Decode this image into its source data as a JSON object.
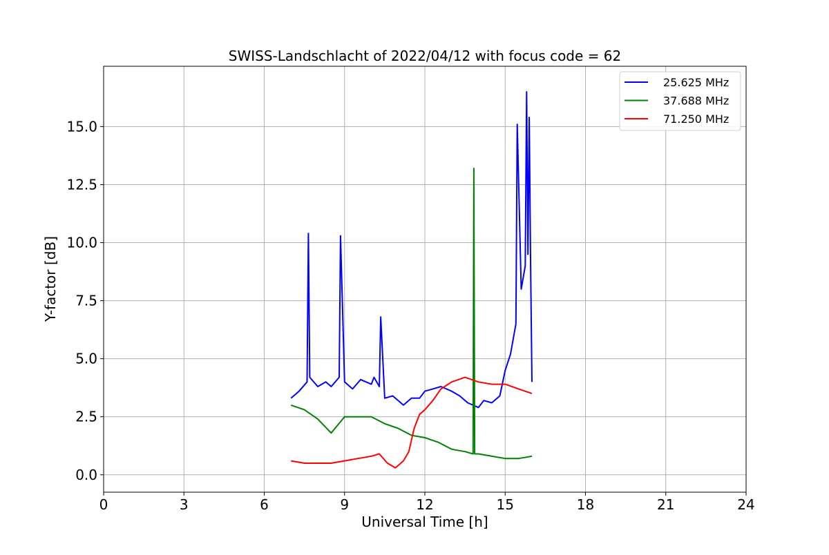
{
  "chart_data": {
    "type": "line",
    "title": "SWISS-Landschlacht of 2022/04/12 with focus code = 62",
    "xlabel": "Universal Time [h]",
    "ylabel": "Y-factor [dB]",
    "xlim": [
      0,
      24
    ],
    "ylim": [
      -0.75,
      17.6
    ],
    "xticks": [
      0,
      3,
      6,
      9,
      12,
      15,
      18,
      21,
      24
    ],
    "xtick_labels": [
      "0",
      "3",
      "6",
      "9",
      "12",
      "15",
      "18",
      "21",
      "24"
    ],
    "yticks": [
      0,
      2.5,
      5,
      7.5,
      10,
      12.5,
      15
    ],
    "ytick_labels": [
      "0.0",
      "2.5",
      "5.0",
      "7.5",
      "10.0",
      "12.5",
      "15.0"
    ],
    "grid": true,
    "legend_position": "top-right",
    "series": [
      {
        "name": "25.625 MHz",
        "color": "#0000ff",
        "x": [
          7.0,
          7.3,
          7.6,
          7.65,
          7.7,
          8.0,
          8.3,
          8.5,
          8.8,
          8.85,
          9.0,
          9.3,
          9.6,
          10.0,
          10.1,
          10.3,
          10.35,
          10.5,
          10.8,
          11.0,
          11.2,
          11.5,
          11.8,
          12.0,
          12.3,
          12.6,
          13.0,
          13.3,
          13.6,
          14.0,
          14.2,
          14.5,
          14.8,
          15.0,
          15.2,
          15.4,
          15.45,
          15.6,
          15.75,
          15.8,
          15.85,
          15.9,
          15.95,
          16.0
        ],
        "y": [
          3.3,
          3.6,
          4.0,
          10.4,
          4.2,
          3.8,
          4.0,
          3.8,
          4.2,
          10.3,
          4.0,
          3.7,
          4.1,
          3.9,
          4.2,
          3.8,
          6.8,
          3.3,
          3.4,
          3.2,
          3.0,
          3.3,
          3.3,
          3.6,
          3.7,
          3.8,
          3.6,
          3.4,
          3.1,
          2.9,
          3.2,
          3.1,
          3.4,
          4.5,
          5.2,
          6.5,
          15.1,
          8.0,
          9.0,
          16.5,
          9.5,
          15.4,
          9.0,
          4.0
        ]
      },
      {
        "name": "37.688 MHz",
        "color": "#008000",
        "x": [
          7.0,
          7.5,
          8.0,
          8.5,
          9.0,
          9.5,
          10.0,
          10.5,
          11.0,
          11.5,
          12.0,
          12.5,
          13.0,
          13.5,
          13.8,
          13.83,
          13.86,
          14.0,
          14.5,
          15.0,
          15.5,
          16.0
        ],
        "y": [
          3.0,
          2.8,
          2.4,
          1.8,
          2.5,
          2.5,
          2.5,
          2.2,
          2.0,
          1.7,
          1.6,
          1.4,
          1.1,
          1.0,
          0.9,
          13.2,
          0.9,
          0.9,
          0.8,
          0.7,
          0.7,
          0.8
        ]
      },
      {
        "name": "71.250 MHz",
        "color": "#ff0000",
        "x": [
          7.0,
          7.5,
          8.0,
          8.5,
          9.0,
          9.5,
          10.0,
          10.3,
          10.6,
          10.9,
          11.2,
          11.4,
          11.6,
          11.8,
          12.0,
          12.3,
          12.6,
          13.0,
          13.5,
          14.0,
          14.5,
          15.0,
          15.5,
          16.0
        ],
        "y": [
          0.6,
          0.5,
          0.5,
          0.5,
          0.6,
          0.7,
          0.8,
          0.9,
          0.5,
          0.3,
          0.6,
          1.0,
          2.0,
          2.6,
          2.8,
          3.2,
          3.7,
          4.0,
          4.2,
          4.0,
          3.9,
          3.9,
          3.7,
          3.5
        ]
      }
    ]
  }
}
